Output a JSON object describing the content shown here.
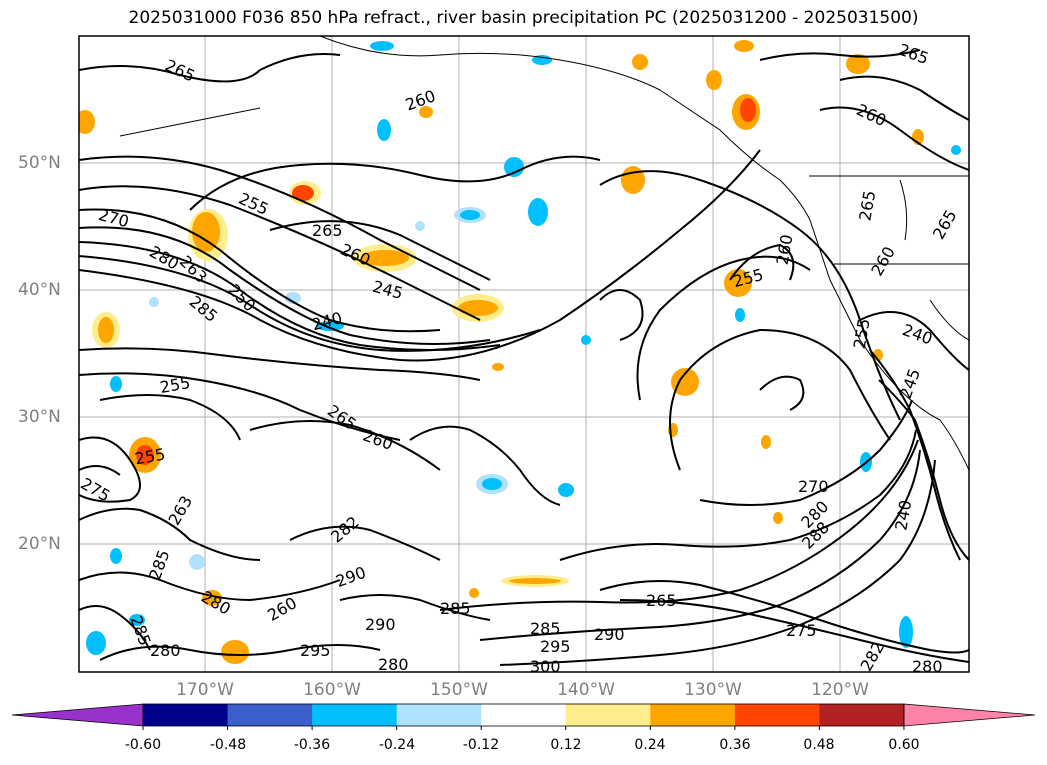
{
  "title": "2025031000 F036 850 hPa refract., river basin precipitation PC (2025031200 - 2025031500)",
  "lat_labels": [
    "50°N",
    "40°N",
    "30°N",
    "20°N"
  ],
  "lon_labels": [
    "170°W",
    "160°W",
    "150°W",
    "140°W",
    "130°W",
    "120°W"
  ],
  "contour_labels": [
    "265",
    "260",
    "265",
    "255",
    "270",
    "265",
    "280",
    "260",
    "263",
    "245",
    "250",
    "285",
    "240",
    "255",
    "255",
    "260",
    "260",
    "265",
    "260",
    "265",
    "265",
    "260",
    "255",
    "240",
    "245",
    "275",
    "255",
    "263",
    "260",
    "270",
    "280",
    "288",
    "265",
    "240",
    "282",
    "285",
    "285",
    "290",
    "295",
    "280",
    "280",
    "290",
    "285",
    "295",
    "300",
    "290",
    "280",
    "282",
    "275",
    "280",
    "285"
  ],
  "colorbar": {
    "ticks": [
      "-0.60",
      "-0.48",
      "-0.36",
      "-0.24",
      "-0.12",
      "0.12",
      "0.24",
      "0.36",
      "0.48",
      "0.60"
    ],
    "colors": [
      "#9932cc",
      "#00008b",
      "#3a5fcd",
      "#00bfff",
      "#b0e2ff",
      "#ffffff",
      "#ffec8b",
      "#ffa500",
      "#ff4500",
      "#b22222",
      "#ff83a8"
    ]
  }
}
